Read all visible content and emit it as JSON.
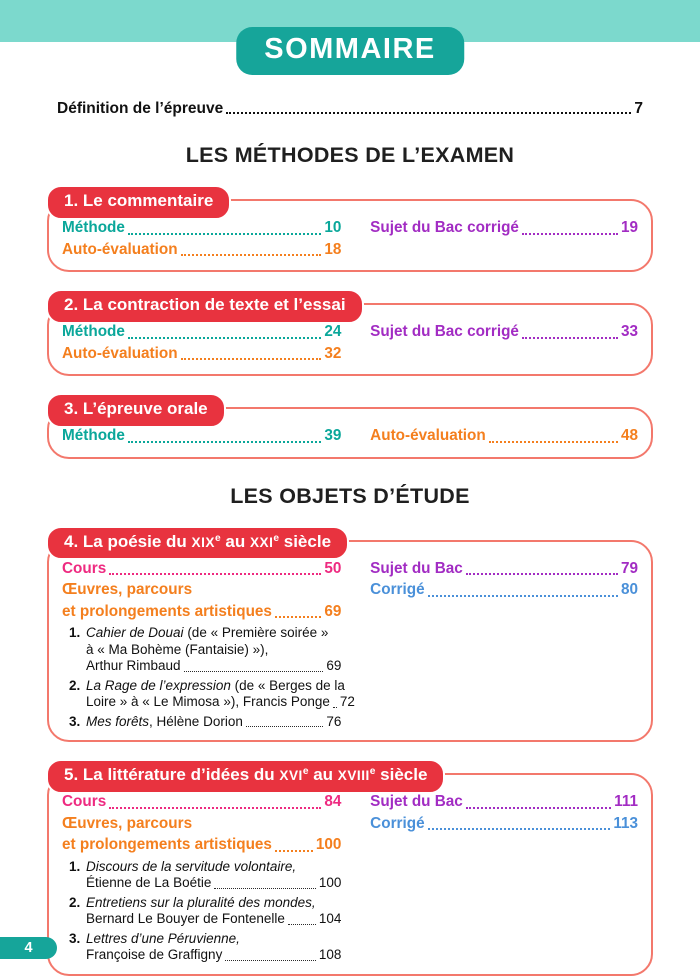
{
  "header": {
    "title": "SOMMAIRE"
  },
  "intro_entry": {
    "label": "Définition de l’épreuve",
    "page": "7"
  },
  "part_headings": {
    "methods": "LES MÉTHODES DE L’EXAMEN",
    "objects": "LES OBJETS D’ÉTUDE"
  },
  "footer": {
    "page_number": "4"
  },
  "colors": {
    "band": "#7cd9cd",
    "teal": "#16a59a",
    "badge_red": "#e8333f",
    "box_border": "#f3786c",
    "entry_teal": "#0aa79a",
    "entry_orange": "#f47f1e",
    "entry_purple": "#a22cc3",
    "entry_pink": "#ee2a80",
    "entry_blue": "#4a90d9"
  },
  "sections": [
    {
      "part": "methods",
      "badge": [
        {
          "t": "1. Le commentaire"
        }
      ],
      "left_entries": [
        {
          "color": "entry_teal",
          "lines": [
            {
              "text": "Méthode",
              "page": "10"
            }
          ]
        },
        {
          "color": "entry_orange",
          "lines": [
            {
              "text": "Auto-évaluation",
              "page": "18"
            }
          ]
        }
      ],
      "right_entries": [
        {
          "color": "entry_purple",
          "lines": [
            {
              "text": "Sujet du Bac corrigé",
              "page": "19"
            }
          ]
        }
      ],
      "works": []
    },
    {
      "part": "methods",
      "badge": [
        {
          "t": "2. La contraction de texte et l’essai"
        }
      ],
      "left_entries": [
        {
          "color": "entry_teal",
          "lines": [
            {
              "text": "Méthode",
              "page": "24"
            }
          ]
        },
        {
          "color": "entry_orange",
          "lines": [
            {
              "text": "Auto-évaluation",
              "page": "32"
            }
          ]
        }
      ],
      "right_entries": [
        {
          "color": "entry_purple",
          "lines": [
            {
              "text": "Sujet du Bac corrigé",
              "page": "33"
            }
          ]
        }
      ],
      "works": []
    },
    {
      "part": "methods",
      "badge": [
        {
          "t": "3. L’épreuve orale"
        }
      ],
      "left_entries": [
        {
          "color": "entry_teal",
          "lines": [
            {
              "text": "Méthode",
              "page": "39"
            }
          ]
        }
      ],
      "right_entries": [
        {
          "color": "entry_orange",
          "lines": [
            {
              "text": "Auto-évaluation",
              "page": "48"
            }
          ]
        }
      ],
      "works": []
    },
    {
      "part": "objects",
      "badge": [
        {
          "t": "4. La poésie du "
        },
        {
          "t": "XIX",
          "style": "sc"
        },
        {
          "t": "e",
          "style": "sup"
        },
        {
          "t": " au "
        },
        {
          "t": "XXI",
          "style": "sc"
        },
        {
          "t": "e",
          "style": "sup"
        },
        {
          "t": " siècle"
        }
      ],
      "left_entries": [
        {
          "color": "entry_pink",
          "lines": [
            {
              "text": "Cours",
              "page": "50"
            }
          ]
        },
        {
          "color": "entry_orange",
          "lines": [
            {
              "text": "Œuvres, parcours"
            },
            {
              "text": "et prolongements artistiques",
              "page": "69"
            }
          ]
        }
      ],
      "right_entries": [
        {
          "color": "entry_purple",
          "lines": [
            {
              "text": "Sujet du Bac",
              "page": "79"
            }
          ]
        },
        {
          "color": "entry_blue",
          "lines": [
            {
              "text": "Corrigé",
              "page": "80"
            }
          ]
        }
      ],
      "works": [
        {
          "num": "1.",
          "lines": [
            {
              "italic": "Cahier de Douai",
              "text": " (de « Première soirée »"
            },
            {
              "text": "à « Ma Bohème (Fantaisie) »),"
            },
            {
              "text": "Arthur Rimbaud",
              "page": "69"
            }
          ]
        },
        {
          "num": "2.",
          "lines": [
            {
              "italic": "La Rage de l’expression",
              "text": " (de « Berges de la"
            },
            {
              "text": "Loire » à « Le Mimosa »), Francis Ponge",
              "page": "72"
            }
          ]
        },
        {
          "num": "3.",
          "lines": [
            {
              "italic": "Mes forêts",
              "text": ", Hélène Dorion",
              "page": "76"
            }
          ]
        }
      ]
    },
    {
      "part": "objects",
      "badge": [
        {
          "t": "5. La littérature d’idées du "
        },
        {
          "t": "XVI",
          "style": "sc"
        },
        {
          "t": "e",
          "style": "sup"
        },
        {
          "t": " au "
        },
        {
          "t": "XVIII",
          "style": "sc"
        },
        {
          "t": "e",
          "style": "sup"
        },
        {
          "t": " siècle"
        }
      ],
      "left_entries": [
        {
          "color": "entry_pink",
          "lines": [
            {
              "text": "Cours",
              "page": "84"
            }
          ]
        },
        {
          "color": "entry_orange",
          "lines": [
            {
              "text": "Œuvres, parcours"
            },
            {
              "text": "et prolongements artistiques",
              "page": "100"
            }
          ]
        }
      ],
      "right_entries": [
        {
          "color": "entry_purple",
          "lines": [
            {
              "text": "Sujet du Bac",
              "page": "111"
            }
          ]
        },
        {
          "color": "entry_blue",
          "lines": [
            {
              "text": "Corrigé",
              "page": "113"
            }
          ]
        }
      ],
      "works": [
        {
          "num": "1.",
          "lines": [
            {
              "italic": "Discours de la servitude volontaire,"
            },
            {
              "text": "Étienne de La Boétie",
              "page": "100"
            }
          ]
        },
        {
          "num": "2.",
          "lines": [
            {
              "italic": "Entretiens sur la pluralité des mondes,"
            },
            {
              "text": "Bernard Le Bouyer de Fontenelle",
              "page": "104"
            }
          ]
        },
        {
          "num": "3.",
          "lines": [
            {
              "italic": "Lettres d’une Péruvienne,"
            },
            {
              "text": "Françoise de Graffigny",
              "page": "108"
            }
          ]
        }
      ]
    }
  ]
}
